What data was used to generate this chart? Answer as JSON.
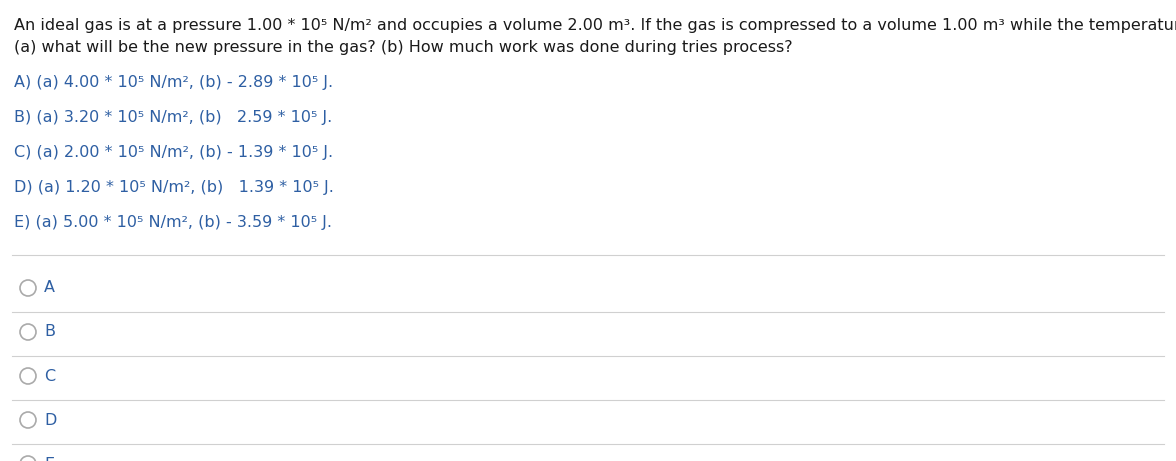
{
  "background_color": "#ffffff",
  "question_color": "#1a1a1a",
  "option_text_color": "#2e5fa3",
  "radio_label_color": "#2e5fa3",
  "divider_color": "#d0d0d0",
  "question_line1": "An ideal gas is at a pressure 1.00 * 10⁵ N/m² and occupies a volume 2.00 m³. If the gas is compressed to a volume 1.00 m³ while the temperature remains constant,",
  "question_line2": "(a) what will be the new pressure in the gas? (b) How much work was done during tries process?",
  "options": [
    "A) (a) 4.00 * 10⁵ N/m², (b) - 2.89 * 10⁵ J.",
    "B) (a) 3.20 * 10⁵ N/m², (b)   2.59 * 10⁵ J.",
    "C) (a) 2.00 * 10⁵ N/m², (b) - 1.39 * 10⁵ J.",
    "D) (a) 1.20 * 10⁵ N/m², (b)   1.39 * 10⁵ J.",
    "E) (a) 5.00 * 10⁵ N/m², (b) - 3.59 * 10⁵ J."
  ],
  "radio_labels": [
    "A",
    "B",
    "C",
    "D",
    "E"
  ],
  "figsize": [
    11.76,
    4.61
  ],
  "dpi": 100,
  "fontsize_question": 11.5,
  "fontsize_options": 11.5,
  "fontsize_radio": 11.5
}
